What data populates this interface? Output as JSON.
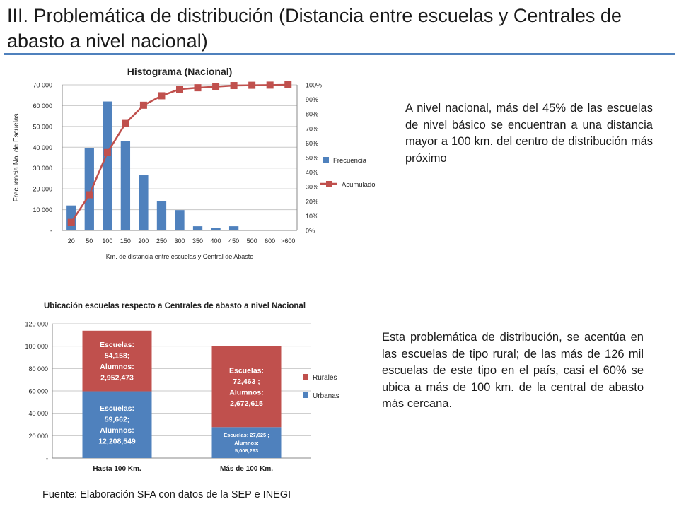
{
  "title": "III. Problemática de distribución (Distancia entre escuelas y Centrales de abasto a nivel nacional)",
  "text1": "A nivel nacional, más del 45% de las escuelas de nivel básico se encuentran a una distancia mayor a 100 km. del centro de distribución más próximo",
  "text2": "Esta problemática de distribución, se acentúa en las escuelas de tipo rural; de las más de 126 mil escuelas de este tipo en el país, casi el 60% se ubica a más de 100 km. de la central de abasto más cercana.",
  "source": "Fuente: Elaboración SFA con datos de la SEP e INEGI",
  "colors": {
    "bar_blue": "#4f81bd",
    "bar_red": "#c0504d",
    "accent_rule": "#4f81bd"
  },
  "chart_data": [
    {
      "type": "bar",
      "title": "Histograma (Nacional)",
      "xlabel": "Km. de distancia entre escuelas y Central de Abasto",
      "ylabel": "Frecuencia No. de Escuelas",
      "categories": [
        "20",
        "50",
        "100",
        "150",
        "200",
        "250",
        "300",
        "350",
        "400",
        "450",
        "500",
        "600",
        ">600"
      ],
      "ylim": [
        0,
        70000
      ],
      "yticks": [
        "-",
        "10 000",
        "20 000",
        "30 000",
        "40 000",
        "50 000",
        "60 000",
        "70 000"
      ],
      "y2lim": [
        0,
        1
      ],
      "y2ticks": [
        "0%",
        "10%",
        "20%",
        "30%",
        "40%",
        "50%",
        "60%",
        "70%",
        "80%",
        "90%",
        "100%"
      ],
      "series": [
        {
          "name": "Frecuencia",
          "type": "bar",
          "axis": "left",
          "values": [
            12000,
            39500,
            62000,
            43000,
            26500,
            14000,
            9800,
            2000,
            1200,
            2000,
            300,
            300,
            300
          ]
        },
        {
          "name": "Acumulado",
          "type": "line",
          "axis": "right",
          "values": [
            0.055,
            0.245,
            0.535,
            0.735,
            0.86,
            0.925,
            0.97,
            0.98,
            0.987,
            0.995,
            0.997,
            0.998,
            1.0
          ]
        }
      ],
      "legend": "right",
      "grid": "horizontal"
    },
    {
      "type": "bar",
      "stacked": true,
      "title": "Ubicación escuelas respecto a Centrales de abasto a nivel Nacional",
      "categories": [
        "Hasta 100 Km.",
        "Más de 100 Km."
      ],
      "ylim": [
        0,
        120000
      ],
      "yticks": [
        "-",
        "20 000",
        "40 000",
        "60 000",
        "80 000",
        "100 000",
        "120 000"
      ],
      "series": [
        {
          "name": "Urbanas",
          "values": [
            59662,
            27625
          ],
          "labels": [
            [
              "Escuelas:",
              "59,662;",
              "Alumnos:",
              "12,208,549"
            ],
            [
              "Escuelas: 27,625 ;",
              "Alumnos:",
              "5,008,293"
            ]
          ]
        },
        {
          "name": "Rurales",
          "values": [
            54158,
            72463
          ],
          "labels": [
            [
              "Escuelas:",
              "54,158;",
              "Alumnos:",
              "2,952,473"
            ],
            [
              "Escuelas:",
              "72,463 ;",
              "Alumnos:",
              "2,672,615"
            ]
          ]
        }
      ],
      "legend": "right",
      "grid": "horizontal"
    }
  ]
}
